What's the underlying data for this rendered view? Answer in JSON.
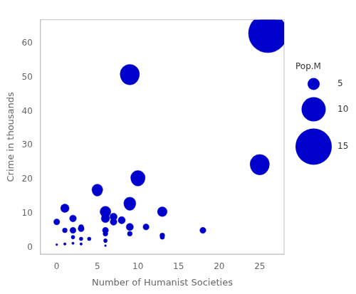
{
  "chart_data": {
    "type": "bubble",
    "xlabel": "Number of Humanist Societies",
    "ylabel": "Crime in thousands",
    "color": "#0000cc",
    "xlim": [
      -2,
      28
    ],
    "ylim": [
      -2,
      67
    ],
    "xticks": [
      0,
      5,
      10,
      15,
      20,
      25
    ],
    "yticks": [
      0,
      10,
      20,
      30,
      40,
      50,
      60
    ],
    "grid": false,
    "legend": "right",
    "legend_title": "Pop.M",
    "legend_sizes": [
      5,
      10,
      15
    ],
    "x": [
      0,
      0,
      1,
      1,
      1,
      1,
      2,
      2,
      2,
      2,
      3,
      3,
      3,
      3,
      3,
      4,
      5,
      5,
      6,
      6,
      6,
      6,
      6,
      6,
      6,
      6,
      6,
      7,
      7,
      8,
      9,
      9,
      9,
      9,
      9,
      9,
      10,
      10,
      11,
      13,
      13,
      13,
      18,
      25,
      25,
      26,
      26
    ],
    "y": [
      7.5,
      0.8,
      11.5,
      5.0,
      1.0,
      1.0,
      8.5,
      5.0,
      3.0,
      1.2,
      6.0,
      5.5,
      2.5,
      1.0,
      1.0,
      2.5,
      17.0,
      16.5,
      10.5,
      10.0,
      9.5,
      8.5,
      5.0,
      4.0,
      2.0,
      1.8,
      0.5,
      9.0,
      7.5,
      8.0,
      51.0,
      50.5,
      13.0,
      12.5,
      6.0,
      4.0,
      20.5,
      20.0,
      6.0,
      10.5,
      3.5,
      3.0,
      5.0,
      24.5,
      24.0,
      63.0,
      62.5
    ],
    "size": [
      2.5,
      0.8,
      3.5,
      2.0,
      1.0,
      0.8,
      2.8,
      2.5,
      1.5,
      1.0,
      2.0,
      2.5,
      1.5,
      1.0,
      0.8,
      1.5,
      4.5,
      4.0,
      4.5,
      3.5,
      3.0,
      3.5,
      2.5,
      2.0,
      1.5,
      1.2,
      0.8,
      3.0,
      2.8,
      3.0,
      8.0,
      7.5,
      5.0,
      4.5,
      3.0,
      2.0,
      6.0,
      5.5,
      2.5,
      4.0,
      2.0,
      1.8,
      2.5,
      8.0,
      7.5,
      16.0,
      14.0
    ]
  }
}
